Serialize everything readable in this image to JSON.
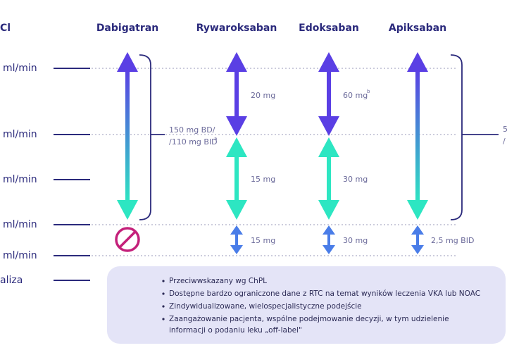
{
  "header": {
    "left": "Cl",
    "columns": [
      "Dabigatran",
      "Rywaroksaban",
      "Edoksaban",
      "Apiksaban"
    ]
  },
  "rows": [
    "ml/min",
    "ml/min",
    "ml/min",
    "ml/min",
    "ml/min",
    "aliza"
  ],
  "doses": {
    "dabigatran": {
      "line1": "150 mg BD/",
      "line2": "/110 mg BID",
      "sup": "a"
    },
    "rywaroksaban": {
      "high": "20 mg",
      "mid": "15 mg",
      "low": "15 mg"
    },
    "edoksaban": {
      "high": "60 mg",
      "high_sup": "b",
      "mid": "30 mg",
      "low": "30 mg"
    },
    "apiksaban": {
      "low": "2,5 mg BID"
    },
    "right_partial": [
      "5",
      "/"
    ]
  },
  "box": {
    "items": [
      "Przeciwwskazany wg ChPL",
      "Dostępne bardzo ograniczone dane z RTC na temat wyników leczenia VKA lub NOAC",
      "Zindywidualizowane, wielospecjalistyczne podejście"
    ],
    "last_item": [
      "Zaangażowanie pacjenta, wspólne podejmowanie decyzji, w tym udzielenie",
      "informacji o podaniu leku „off-label\""
    ]
  }
}
